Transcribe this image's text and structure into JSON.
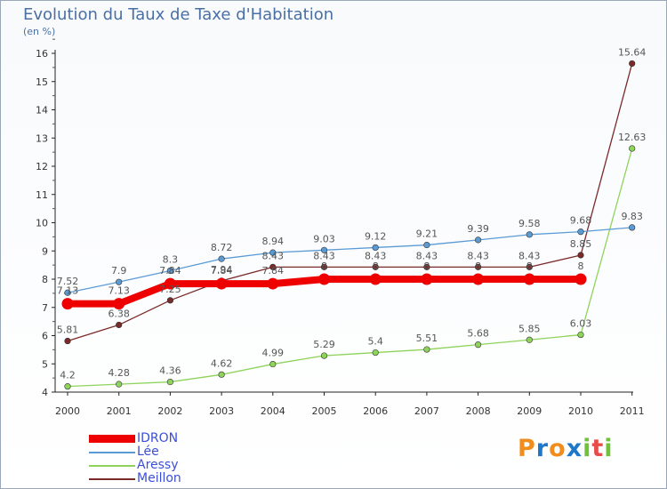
{
  "title": "Evolution du Taux de Taxe d'Habitation",
  "subtitle": "(en %)",
  "logo_text": "Proxiti",
  "chart_data": {
    "type": "line",
    "title": "Evolution du Taux de Taxe d'Habitation",
    "subtitle": "(en %)",
    "xlabel": "",
    "ylabel": "",
    "x": [
      "2000",
      "2001",
      "2002",
      "2003",
      "2004",
      "2005",
      "2006",
      "2007",
      "2008",
      "2009",
      "2010",
      "2011"
    ],
    "ylim": [
      4,
      16
    ],
    "yticks": [
      "4",
      "5",
      "6",
      "7",
      "8",
      "9",
      "10",
      "11",
      "12",
      "13",
      "14",
      "15",
      "16"
    ],
    "grid": false,
    "legend_position": "bottom-left",
    "series": [
      {
        "name": "IDRON",
        "color": "#ee0000",
        "values": [
          7.13,
          7.13,
          7.84,
          7.84,
          7.84,
          8,
          8,
          8,
          8,
          8,
          8,
          null
        ],
        "labels": [
          "7.13",
          "7.13",
          "7.84",
          "7.84",
          "7.84",
          "8",
          "8",
          "8",
          "8",
          "8",
          "8",
          ""
        ]
      },
      {
        "name": "Lée",
        "color": "#5b9bd5",
        "values": [
          7.52,
          7.9,
          8.3,
          8.72,
          8.94,
          9.03,
          9.12,
          9.21,
          9.39,
          9.58,
          9.68,
          9.83
        ],
        "labels": [
          "7.52",
          "7.9",
          "8.3",
          "8.72",
          "8.94",
          "9.03",
          "9.12",
          "9.21",
          "9.39",
          "9.58",
          "9.68",
          "9.83"
        ]
      },
      {
        "name": "Aressy",
        "color": "#8ed45b",
        "values": [
          4.2,
          4.28,
          4.36,
          4.62,
          4.99,
          5.29,
          5.4,
          5.51,
          5.68,
          5.85,
          6.03,
          12.63
        ],
        "labels": [
          "4.2",
          "4.28",
          "4.36",
          "4.62",
          "4.99",
          "5.29",
          "5.4",
          "5.51",
          "5.68",
          "5.85",
          "6.03",
          "12.63"
        ]
      },
      {
        "name": "Meillon",
        "color": "#7b2a2a",
        "values": [
          5.81,
          6.38,
          7.25,
          7.94,
          8.43,
          8.43,
          8.43,
          8.43,
          8.43,
          8.43,
          8.85,
          15.64
        ],
        "labels": [
          "5.81",
          "6.38",
          "7.25",
          "7.94",
          "8.43",
          "8.43",
          "8.43",
          "8.43",
          "8.43",
          "8.43",
          "8.85",
          "15.64"
        ]
      }
    ]
  }
}
